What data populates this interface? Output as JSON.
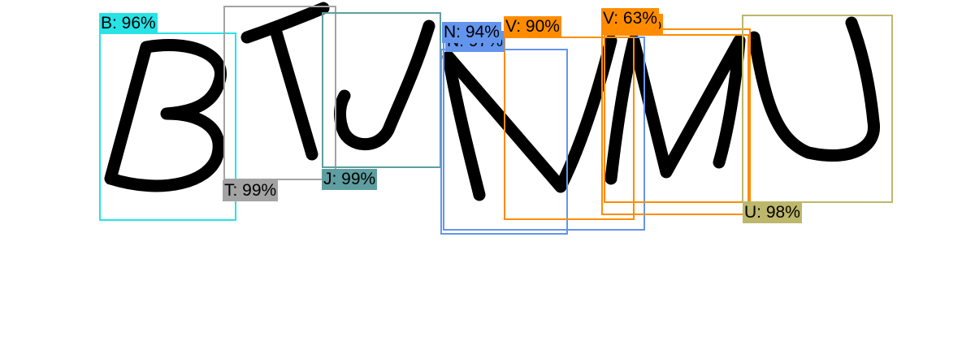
{
  "detections": [
    {
      "id": "b",
      "label": "B: 96%",
      "color": "#27e3e6"
    },
    {
      "id": "t",
      "label": "T: 99%",
      "color": "#a3a3a3"
    },
    {
      "id": "j",
      "label": "J: 99%",
      "color": "#5f9ea0"
    },
    {
      "id": "n-hidden",
      "label": "N: 97%",
      "color": "#6495ed"
    },
    {
      "id": "n",
      "label": "N: 94%",
      "color": "#6495ed"
    },
    {
      "id": "v",
      "label": "V: 90%",
      "color": "#ff8c00"
    },
    {
      "id": "m-hidden",
      "label": "M: 87%",
      "color": "#ff8c00"
    },
    {
      "id": "v2",
      "label": "V: 63%",
      "color": "#ff8c00"
    },
    {
      "id": "u",
      "label": "U: 98%",
      "color": "#bdb76b"
    }
  ]
}
